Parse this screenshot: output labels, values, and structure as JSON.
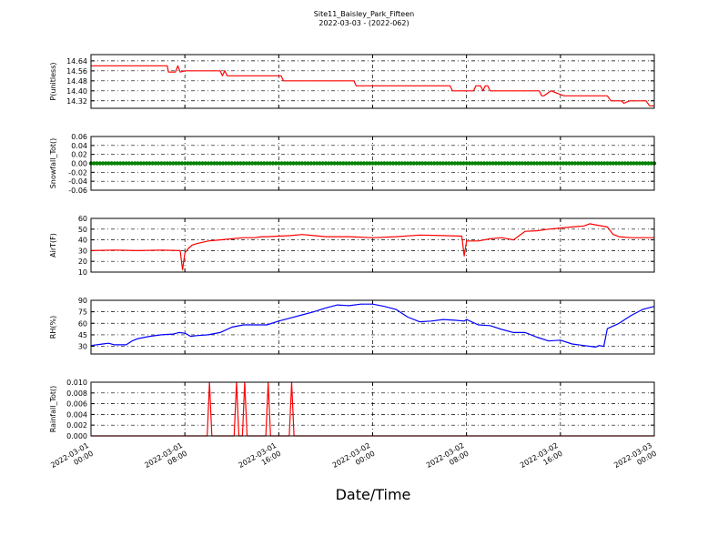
{
  "title": "Site11_Baisley_Park_Fifteen",
  "subtitle": "2022-03-03 - (2022-062)",
  "xlabel": "Date/Time",
  "colors": {
    "P": "#ff0000",
    "Snow": "#008000",
    "AirT": "#ff0000",
    "RH": "#0000ff",
    "Rain": "#ff0000"
  },
  "chart_data": [
    {
      "type": "line",
      "id": "P",
      "ylabel": "P(unitless)",
      "yticks": [
        "14.64",
        "14.56",
        "14.48",
        "14.40",
        "14.32"
      ],
      "ylim": [
        14.26,
        14.69
      ],
      "xlim": [
        0,
        48
      ],
      "grid": true,
      "series": [
        {
          "x": [
            0,
            6.5,
            6.6,
            7.2,
            7.4,
            7.6,
            8.0,
            11.0,
            11.2,
            11.4,
            11.6,
            11.8,
            16.2,
            16.4,
            22.4,
            22.6,
            30.6,
            30.8,
            32.6,
            32.8,
            33.2,
            33.4,
            33.6,
            33.8,
            34.0,
            34.2,
            38.2,
            38.4,
            38.6,
            39.2,
            40.3,
            44.0,
            44.3,
            45.2,
            45.4,
            45.9,
            46.1,
            47.3,
            47.6,
            48
          ],
          "y": [
            14.6,
            14.6,
            14.55,
            14.55,
            14.6,
            14.55,
            14.56,
            14.56,
            14.52,
            14.56,
            14.52,
            14.52,
            14.52,
            14.48,
            14.48,
            14.44,
            14.44,
            14.4,
            14.4,
            14.44,
            14.44,
            14.4,
            14.44,
            14.44,
            14.4,
            14.4,
            14.4,
            14.36,
            14.36,
            14.4,
            14.36,
            14.36,
            14.32,
            14.32,
            14.3,
            14.32,
            14.32,
            14.32,
            14.28,
            14.28
          ]
        }
      ]
    },
    {
      "type": "scatter",
      "id": "Snowfall",
      "ylabel": "Snowfall_Tot()",
      "yticks": [
        "0.06",
        "0.04",
        "0.02",
        "0.00",
        "-0.02",
        "-0.04",
        "-0.06"
      ],
      "ylim": [
        -0.06,
        0.06
      ],
      "xlim": [
        0,
        48
      ],
      "grid": true,
      "series": [
        {
          "x_start": 0,
          "x_end": 48,
          "x_step": 0.25,
          "y": 0
        }
      ]
    },
    {
      "type": "line",
      "id": "AirT",
      "ylabel": "AirT(F)",
      "yticks": [
        "60",
        "50",
        "40",
        "30",
        "20",
        "10"
      ],
      "ylim": [
        10,
        60
      ],
      "xlim": [
        0,
        48
      ],
      "grid": true,
      "series": [
        {
          "x": [
            0,
            2,
            4,
            6,
            7.6,
            7.8,
            8.0,
            8.3,
            8.6,
            9,
            10,
            11,
            12,
            13,
            14,
            14.5,
            15,
            16,
            17,
            18,
            19,
            20,
            22,
            24,
            26,
            28,
            30,
            31.6,
            31.8,
            32.0,
            32.2,
            33,
            34,
            35,
            36,
            36.5,
            37,
            38,
            39,
            40,
            41,
            42,
            42.5,
            43,
            44,
            44.5,
            45,
            46,
            48
          ],
          "y": [
            30,
            30.5,
            30,
            30.5,
            30,
            12,
            28,
            32,
            35,
            36.5,
            39,
            40,
            41,
            42,
            42,
            43,
            43,
            43.5,
            44,
            45,
            44,
            43,
            43,
            42,
            43,
            44.5,
            44,
            43.5,
            25,
            39,
            39,
            39,
            41,
            42,
            40,
            44,
            48,
            48.5,
            50,
            51,
            52,
            53,
            55,
            54,
            52,
            45,
            43,
            42,
            42
          ]
        }
      ]
    },
    {
      "type": "line",
      "id": "RH",
      "ylabel": "RH(%)",
      "yticks": [
        "90",
        "75",
        "60",
        "45",
        "30"
      ],
      "ylim": [
        20,
        90
      ],
      "xlim": [
        0,
        48
      ],
      "grid": true,
      "series": [
        {
          "x": [
            0,
            1,
            1.5,
            2,
            3,
            3.5,
            4,
            5,
            6,
            7,
            7.5,
            8,
            8.5,
            9,
            10,
            11,
            12,
            13,
            14,
            15,
            16,
            17,
            18,
            19,
            20,
            21,
            22,
            23,
            24,
            25,
            26,
            27,
            28,
            29,
            30,
            31,
            31.8,
            32,
            33,
            34,
            35,
            36,
            37,
            38,
            39,
            40,
            41,
            42,
            43,
            43.3,
            43.7,
            44,
            45,
            46,
            47,
            48
          ],
          "y": [
            31,
            33,
            34,
            32,
            32,
            37,
            40,
            43,
            45,
            46,
            48,
            47,
            43,
            44,
            45,
            48,
            55,
            58,
            58,
            58,
            63,
            67,
            71,
            75,
            80,
            84,
            83,
            85,
            85,
            82,
            78,
            68,
            62,
            63,
            65,
            64,
            63,
            65,
            58,
            57,
            52,
            48,
            48,
            42,
            37,
            38,
            33,
            31,
            29,
            31,
            30,
            53,
            60,
            70,
            78,
            82
          ]
        }
      ]
    },
    {
      "type": "line",
      "id": "Rainfall",
      "ylabel": "Rainfall_Tot()",
      "yticks": [
        "0.010",
        "0.008",
        "0.006",
        "0.004",
        "0.002",
        "0.000"
      ],
      "ylim": [
        0,
        0.01
      ],
      "xlim": [
        0,
        48
      ],
      "grid": true,
      "series": [
        {
          "x": [
            0,
            9.9,
            10.1,
            10.3,
            12.2,
            12.4,
            12.6,
            12.9,
            13.1,
            13.3,
            14.9,
            15.1,
            15.3,
            16.9,
            17.1,
            17.3,
            48
          ],
          "y": [
            0,
            0,
            0.01,
            0,
            0,
            0.01,
            0,
            0,
            0.01,
            0,
            0,
            0.01,
            0,
            0,
            0.01,
            0,
            0
          ]
        }
      ]
    }
  ],
  "xticks": [
    {
      "x": 0,
      "line1": "2022-03-01",
      "line2": "00:00"
    },
    {
      "x": 8,
      "line1": "2022-03-01",
      "line2": "08:00"
    },
    {
      "x": 16,
      "line1": "2022-03-01",
      "line2": "16:00"
    },
    {
      "x": 24,
      "line1": "2022-03-02",
      "line2": "00:00"
    },
    {
      "x": 32,
      "line1": "2022-03-02",
      "line2": "08:00"
    },
    {
      "x": 40,
      "line1": "2022-03-02",
      "line2": "16:00"
    },
    {
      "x": 48,
      "line1": "2022-03-03",
      "line2": "00:00"
    }
  ]
}
